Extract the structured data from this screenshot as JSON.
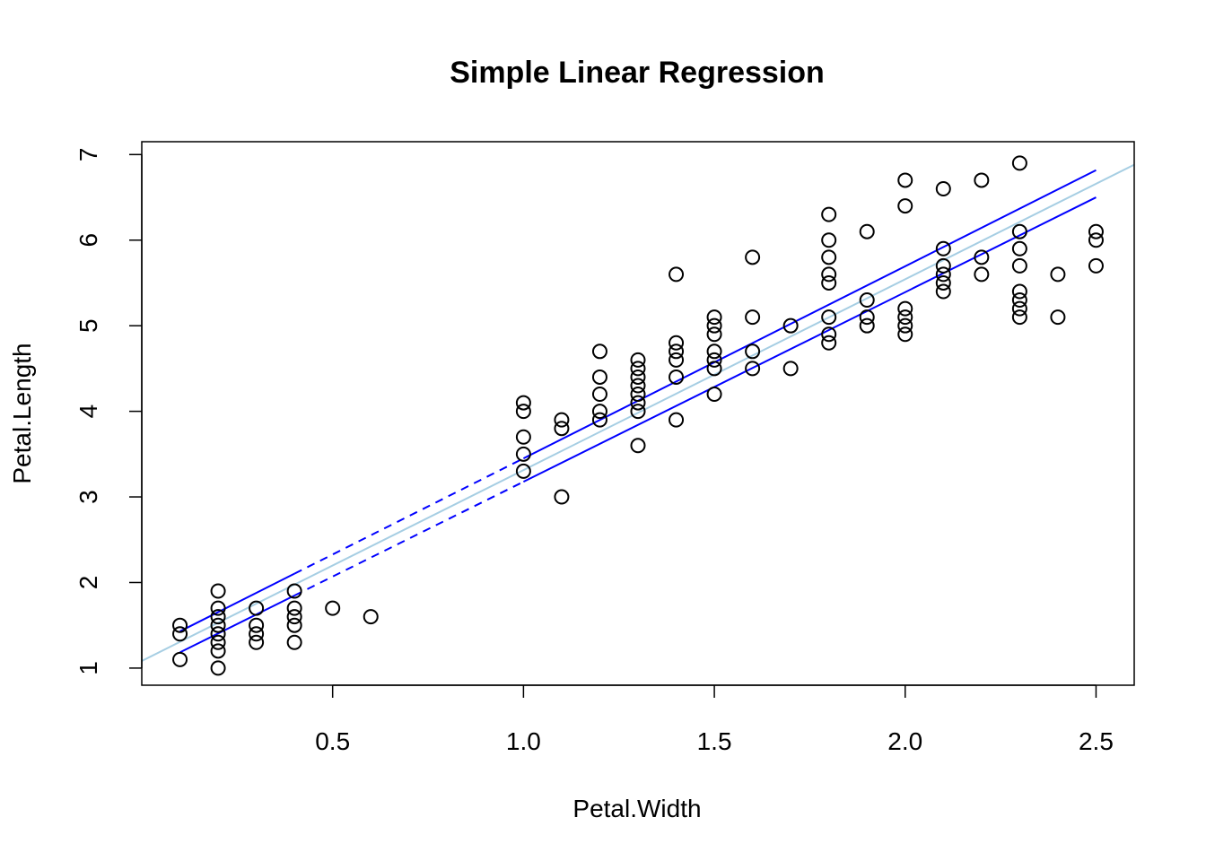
{
  "chart_data": {
    "type": "scatter",
    "title": "Simple Linear Regression",
    "xlabel": "Petal.Width",
    "ylabel": "Petal.Length",
    "xlim": [
      0.0,
      2.6
    ],
    "ylim": [
      0.8,
      7.15
    ],
    "x_ticks": [
      {
        "value": 0.5,
        "label": "0.5"
      },
      {
        "value": 1.0,
        "label": "1.0"
      },
      {
        "value": 1.5,
        "label": "1.5"
      },
      {
        "value": 2.0,
        "label": "2.0"
      },
      {
        "value": 2.5,
        "label": "2.5"
      }
    ],
    "y_ticks": [
      {
        "value": 1,
        "label": "1"
      },
      {
        "value": 2,
        "label": "2"
      },
      {
        "value": 3,
        "label": "3"
      },
      {
        "value": 4,
        "label": "4"
      },
      {
        "value": 5,
        "label": "5"
      },
      {
        "value": 6,
        "label": "6"
      },
      {
        "value": 7,
        "label": "7"
      }
    ],
    "grid": false,
    "points": [
      {
        "x": 0.1,
        "y": 1.5
      },
      {
        "x": 0.1,
        "y": 1.4
      },
      {
        "x": 0.1,
        "y": 1.1
      },
      {
        "x": 0.2,
        "y": 1.9
      },
      {
        "x": 0.2,
        "y": 1.7
      },
      {
        "x": 0.2,
        "y": 1.6
      },
      {
        "x": 0.2,
        "y": 1.5
      },
      {
        "x": 0.2,
        "y": 1.4
      },
      {
        "x": 0.2,
        "y": 1.3
      },
      {
        "x": 0.2,
        "y": 1.2
      },
      {
        "x": 0.2,
        "y": 1.0
      },
      {
        "x": 0.3,
        "y": 1.7
      },
      {
        "x": 0.3,
        "y": 1.5
      },
      {
        "x": 0.3,
        "y": 1.4
      },
      {
        "x": 0.3,
        "y": 1.3
      },
      {
        "x": 0.4,
        "y": 1.9
      },
      {
        "x": 0.4,
        "y": 1.7
      },
      {
        "x": 0.4,
        "y": 1.6
      },
      {
        "x": 0.4,
        "y": 1.5
      },
      {
        "x": 0.4,
        "y": 1.3
      },
      {
        "x": 0.5,
        "y": 1.7
      },
      {
        "x": 0.6,
        "y": 1.6
      },
      {
        "x": 1.0,
        "y": 4.1
      },
      {
        "x": 1.0,
        "y": 4.0
      },
      {
        "x": 1.0,
        "y": 3.7
      },
      {
        "x": 1.0,
        "y": 3.5
      },
      {
        "x": 1.0,
        "y": 3.3
      },
      {
        "x": 1.1,
        "y": 3.9
      },
      {
        "x": 1.1,
        "y": 3.8
      },
      {
        "x": 1.1,
        "y": 3.0
      },
      {
        "x": 1.2,
        "y": 4.7
      },
      {
        "x": 1.2,
        "y": 4.4
      },
      {
        "x": 1.2,
        "y": 4.2
      },
      {
        "x": 1.2,
        "y": 4.0
      },
      {
        "x": 1.2,
        "y": 3.9
      },
      {
        "x": 1.3,
        "y": 4.6
      },
      {
        "x": 1.3,
        "y": 4.5
      },
      {
        "x": 1.3,
        "y": 4.4
      },
      {
        "x": 1.3,
        "y": 4.3
      },
      {
        "x": 1.3,
        "y": 4.2
      },
      {
        "x": 1.3,
        "y": 4.1
      },
      {
        "x": 1.3,
        "y": 4.0
      },
      {
        "x": 1.3,
        "y": 3.6
      },
      {
        "x": 1.4,
        "y": 5.6
      },
      {
        "x": 1.4,
        "y": 4.8
      },
      {
        "x": 1.4,
        "y": 4.7
      },
      {
        "x": 1.4,
        "y": 4.6
      },
      {
        "x": 1.4,
        "y": 4.4
      },
      {
        "x": 1.4,
        "y": 3.9
      },
      {
        "x": 1.5,
        "y": 5.1
      },
      {
        "x": 1.5,
        "y": 5.0
      },
      {
        "x": 1.5,
        "y": 4.9
      },
      {
        "x": 1.5,
        "y": 4.7
      },
      {
        "x": 1.5,
        "y": 4.6
      },
      {
        "x": 1.5,
        "y": 4.5
      },
      {
        "x": 1.5,
        "y": 4.2
      },
      {
        "x": 1.6,
        "y": 5.8
      },
      {
        "x": 1.6,
        "y": 5.1
      },
      {
        "x": 1.6,
        "y": 4.7
      },
      {
        "x": 1.6,
        "y": 4.5
      },
      {
        "x": 1.7,
        "y": 5.0
      },
      {
        "x": 1.7,
        "y": 4.5
      },
      {
        "x": 1.8,
        "y": 6.3
      },
      {
        "x": 1.8,
        "y": 6.0
      },
      {
        "x": 1.8,
        "y": 5.8
      },
      {
        "x": 1.8,
        "y": 5.6
      },
      {
        "x": 1.8,
        "y": 5.5
      },
      {
        "x": 1.8,
        "y": 5.1
      },
      {
        "x": 1.8,
        "y": 4.9
      },
      {
        "x": 1.8,
        "y": 4.8
      },
      {
        "x": 1.9,
        "y": 6.1
      },
      {
        "x": 1.9,
        "y": 5.3
      },
      {
        "x": 1.9,
        "y": 5.1
      },
      {
        "x": 1.9,
        "y": 5.0
      },
      {
        "x": 2.0,
        "y": 6.7
      },
      {
        "x": 2.0,
        "y": 6.4
      },
      {
        "x": 2.0,
        "y": 5.2
      },
      {
        "x": 2.0,
        "y": 5.1
      },
      {
        "x": 2.0,
        "y": 5.0
      },
      {
        "x": 2.0,
        "y": 4.9
      },
      {
        "x": 2.1,
        "y": 6.6
      },
      {
        "x": 2.1,
        "y": 5.9
      },
      {
        "x": 2.1,
        "y": 5.7
      },
      {
        "x": 2.1,
        "y": 5.6
      },
      {
        "x": 2.1,
        "y": 5.5
      },
      {
        "x": 2.1,
        "y": 5.4
      },
      {
        "x": 2.2,
        "y": 6.7
      },
      {
        "x": 2.2,
        "y": 5.8
      },
      {
        "x": 2.2,
        "y": 5.6
      },
      {
        "x": 2.3,
        "y": 6.9
      },
      {
        "x": 2.3,
        "y": 6.1
      },
      {
        "x": 2.3,
        "y": 5.9
      },
      {
        "x": 2.3,
        "y": 5.7
      },
      {
        "x": 2.3,
        "y": 5.4
      },
      {
        "x": 2.3,
        "y": 5.3
      },
      {
        "x": 2.3,
        "y": 5.2
      },
      {
        "x": 2.3,
        "y": 5.1
      },
      {
        "x": 2.4,
        "y": 5.6
      },
      {
        "x": 2.4,
        "y": 5.1
      },
      {
        "x": 2.5,
        "y": 6.1
      },
      {
        "x": 2.5,
        "y": 6.0
      },
      {
        "x": 2.5,
        "y": 5.7
      }
    ],
    "regression_line": {
      "intercept": 1.0836,
      "slope": 2.2299,
      "color": "#a6cee3"
    },
    "confidence_band": {
      "color": "#0000ff",
      "upper": {
        "intercept": 1.205,
        "slope": 2.245
      },
      "lower": {
        "intercept": 0.962,
        "slope": 2.215
      },
      "solid_ranges": [
        [
          0.1,
          0.4
        ],
        [
          1.0,
          2.5
        ]
      ],
      "dashed_range": [
        0.4,
        1.0
      ]
    },
    "colors": {
      "points": "#000000",
      "axes": "#000000"
    }
  }
}
